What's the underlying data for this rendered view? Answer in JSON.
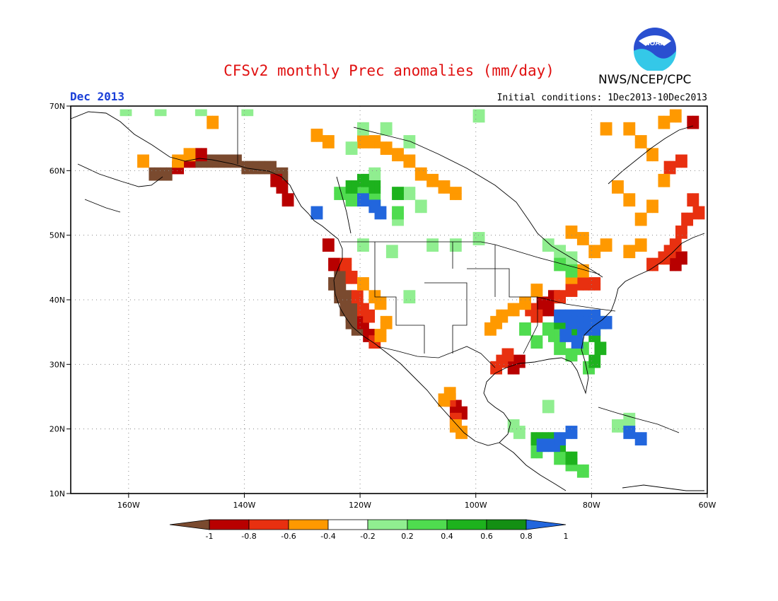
{
  "header": {
    "title": "CFSv2 monthly Prec anomalies (mm/day)",
    "month": "Dec 2013",
    "initial_conditions": "Initial conditions: 1Dec2013-10Dec2013",
    "agency": "NWS/NCEP/CPC",
    "logo_text": "NOAA"
  },
  "map": {
    "lat_labels": [
      "70N",
      "60N",
      "50N",
      "40N",
      "30N",
      "20N",
      "10N"
    ],
    "lon_labels": [
      "160W",
      "140W",
      "120W",
      "100W",
      "80W",
      "60W"
    ],
    "lat_range": [
      10,
      70
    ],
    "lon_range": [
      -170,
      -60
    ],
    "grid": "dotted"
  },
  "colorbar": {
    "tick_labels": [
      "-1",
      "-0.8",
      "-0.6",
      "-0.4",
      "-0.2",
      "0.2",
      "0.4",
      "0.6",
      "0.8",
      "1"
    ],
    "colors": [
      "#7a4a2f",
      "#b80000",
      "#e83010",
      "#ff9900",
      "#ffffff",
      "#90ee90",
      "#4fdc4f",
      "#1db21d",
      "#138f13",
      "#2266dd"
    ]
  },
  "anomalies": [
    {
      "name": "west-coast-dry",
      "color": "#7a4a2f",
      "cells": [
        [
          -125,
          42
        ],
        [
          -124,
          41
        ],
        [
          -124,
          40
        ],
        [
          -123,
          39
        ],
        [
          -123,
          38
        ],
        [
          -122,
          37
        ],
        [
          -121,
          36
        ],
        [
          -124,
          43
        ],
        [
          -124,
          42
        ],
        [
          -123,
          40
        ],
        [
          -122,
          38
        ],
        [
          -122,
          36
        ],
        [
          -121,
          35
        ]
      ]
    },
    {
      "name": "alaska-dry",
      "color": "#7a4a2f",
      "cells": [
        [
          -148,
          61
        ],
        [
          -146,
          61
        ],
        [
          -144,
          61
        ],
        [
          -142,
          61
        ],
        [
          -140,
          60
        ],
        [
          -138,
          60
        ],
        [
          -136,
          60
        ],
        [
          -134,
          59
        ],
        [
          -156,
          59
        ],
        [
          -154,
          59
        ]
      ]
    },
    {
      "name": "west-red",
      "color": "#b80000",
      "cells": [
        [
          -126,
          48
        ],
        [
          -125,
          45
        ],
        [
          -120,
          36
        ],
        [
          -119,
          34
        ],
        [
          -152,
          60
        ],
        [
          -150,
          61
        ],
        [
          -148,
          62
        ],
        [
          -135,
          58
        ],
        [
          -134,
          57
        ],
        [
          -133,
          55
        ],
        [
          -94,
          29
        ],
        [
          -93,
          30
        ],
        [
          -88,
          38
        ],
        [
          -89,
          39
        ],
        [
          -87,
          40
        ],
        [
          -104,
          23
        ],
        [
          -103,
          22
        ],
        [
          -66,
          45
        ],
        [
          -65,
          46
        ],
        [
          -63,
          67
        ]
      ]
    },
    {
      "name": "orange-red",
      "color": "#e83010",
      "cells": [
        [
          -123,
          45
        ],
        [
          -122,
          43
        ],
        [
          -121,
          40
        ],
        [
          -120,
          38
        ],
        [
          -119,
          37
        ],
        [
          -118,
          33
        ],
        [
          -97,
          29
        ],
        [
          -96,
          30
        ],
        [
          -95,
          31
        ],
        [
          -84,
          41
        ],
        [
          -82,
          42
        ],
        [
          -80,
          42
        ],
        [
          -86,
          40
        ],
        [
          -90,
          37
        ],
        [
          -91,
          38
        ],
        [
          -105,
          24
        ],
        [
          -104,
          21
        ],
        [
          -62,
          53
        ],
        [
          -63,
          55
        ],
        [
          -64,
          52
        ],
        [
          -65,
          50
        ],
        [
          -66,
          48
        ],
        [
          -67,
          47
        ],
        [
          -68,
          46
        ],
        [
          -70,
          45
        ],
        [
          -67,
          60
        ],
        [
          -65,
          61
        ]
      ]
    },
    {
      "name": "orange-dry",
      "color": "#ff9900",
      "cells": [
        [
          -120,
          42
        ],
        [
          -118,
          40
        ],
        [
          -117,
          39
        ],
        [
          -116,
          36
        ],
        [
          -117,
          34
        ],
        [
          -98,
          35
        ],
        [
          -97,
          36
        ],
        [
          -96,
          37
        ],
        [
          -94,
          38
        ],
        [
          -92,
          39
        ],
        [
          -90,
          41
        ],
        [
          -84,
          43
        ],
        [
          -82,
          44
        ],
        [
          -106,
          24
        ],
        [
          -105,
          25
        ],
        [
          -104,
          20
        ],
        [
          -103,
          19
        ],
        [
          -120,
          64
        ],
        [
          -118,
          64
        ],
        [
          -116,
          63
        ],
        [
          -114,
          62
        ],
        [
          -112,
          61
        ],
        [
          -110,
          59
        ],
        [
          -108,
          58
        ],
        [
          -106,
          57
        ],
        [
          -104,
          56
        ],
        [
          -72,
          52
        ],
        [
          -74,
          55
        ],
        [
          -76,
          57
        ],
        [
          -78,
          48
        ],
        [
          -80,
          47
        ],
        [
          -82,
          49
        ],
        [
          -84,
          50
        ],
        [
          -70,
          62
        ],
        [
          -72,
          64
        ],
        [
          -74,
          66
        ],
        [
          -68,
          67
        ],
        [
          -66,
          68
        ],
        [
          -78,
          66
        ],
        [
          -70,
          54
        ],
        [
          -68,
          58
        ],
        [
          -72,
          48
        ],
        [
          -74,
          47
        ],
        [
          -126,
          64
        ],
        [
          -128,
          65
        ],
        [
          -152,
          61
        ],
        [
          -146,
          67
        ],
        [
          -158,
          61
        ],
        [
          -150,
          62
        ]
      ]
    },
    {
      "name": "light-green",
      "color": "#90ee90",
      "cells": [
        [
          -120,
          66
        ],
        [
          -116,
          66
        ],
        [
          -112,
          64
        ],
        [
          -122,
          63
        ],
        [
          -118,
          59
        ],
        [
          -112,
          56
        ],
        [
          -110,
          54
        ],
        [
          -114,
          52
        ],
        [
          -120,
          48
        ],
        [
          -115,
          47
        ],
        [
          -108,
          48
        ],
        [
          -104,
          48
        ],
        [
          -100,
          49
        ],
        [
          -88,
          48
        ],
        [
          -86,
          47
        ],
        [
          -84,
          46
        ],
        [
          -94,
          20
        ],
        [
          -93,
          19
        ],
        [
          -88,
          23
        ],
        [
          -112,
          40
        ],
        [
          -161,
          69
        ],
        [
          -155,
          69
        ],
        [
          -148,
          69
        ],
        [
          -140,
          69
        ],
        [
          -100,
          68
        ],
        [
          -74,
          21
        ],
        [
          -76,
          20
        ]
      ]
    },
    {
      "name": "green",
      "color": "#4fdc4f",
      "cells": [
        [
          -124,
          56
        ],
        [
          -122,
          55
        ],
        [
          -120,
          56
        ],
        [
          -118,
          55
        ],
        [
          -114,
          53
        ],
        [
          -88,
          35
        ],
        [
          -87,
          34
        ],
        [
          -86,
          32
        ],
        [
          -84,
          31
        ],
        [
          -82,
          32
        ],
        [
          -81,
          29
        ],
        [
          -92,
          35
        ],
        [
          -90,
          33
        ],
        [
          -88,
          17
        ],
        [
          -86,
          15
        ],
        [
          -84,
          14
        ],
        [
          -82,
          13
        ],
        [
          -90,
          16
        ],
        [
          -86,
          45
        ],
        [
          -84,
          44
        ],
        [
          -79,
          36
        ]
      ]
    },
    {
      "name": "dark-green",
      "color": "#1db21d",
      "cells": [
        [
          -122,
          57
        ],
        [
          -120,
          58
        ],
        [
          -118,
          57
        ],
        [
          -114,
          56
        ],
        [
          -86,
          36
        ],
        [
          -85,
          35
        ],
        [
          -83,
          34
        ],
        [
          -80,
          34
        ],
        [
          -79,
          32
        ],
        [
          -80,
          30
        ],
        [
          -90,
          18
        ],
        [
          -88,
          18
        ],
        [
          -86,
          17
        ],
        [
          -84,
          15
        ]
      ]
    },
    {
      "name": "blue-wet",
      "color": "#2266dd",
      "cells": [
        [
          -120,
          55
        ],
        [
          -118,
          54
        ],
        [
          -117,
          53
        ],
        [
          -86,
          37
        ],
        [
          -84,
          37
        ],
        [
          -82,
          37
        ],
        [
          -80,
          37
        ],
        [
          -78,
          36
        ],
        [
          -84,
          36
        ],
        [
          -82,
          35
        ],
        [
          -80,
          35
        ],
        [
          -85,
          34
        ],
        [
          -83,
          33
        ],
        [
          -89,
          17
        ],
        [
          -87,
          17
        ],
        [
          -86,
          18
        ],
        [
          -84,
          19
        ],
        [
          -128,
          53
        ],
        [
          -74,
          19
        ],
        [
          -72,
          18
        ]
      ]
    }
  ]
}
